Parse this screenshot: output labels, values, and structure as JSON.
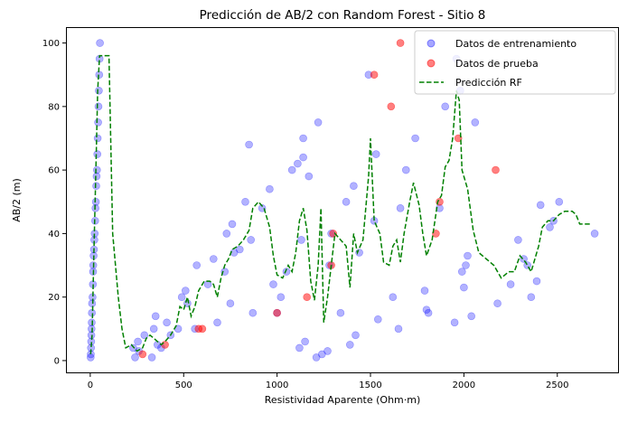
{
  "chart_data": {
    "type": "scatter",
    "title": "Predicción de AB/2 con Random Forest - Sitio 8",
    "xlabel": "Resistividad Aparente (Ohm·m)",
    "ylabel": "AB/2 (m)",
    "xlim": [
      -130,
      2830
    ],
    "ylim": [
      -4,
      105
    ],
    "xticks": [
      0,
      500,
      1000,
      1500,
      2000,
      2500
    ],
    "yticks": [
      0,
      20,
      40,
      60,
      80,
      100
    ],
    "grid": false,
    "legend_position": "top-right",
    "series": [
      {
        "name": "Datos de entrenamiento",
        "kind": "scatter",
        "color": "#0000ff",
        "points": [
          [
            2,
            1
          ],
          [
            3,
            2
          ],
          [
            4,
            4
          ],
          [
            5,
            6
          ],
          [
            6,
            8
          ],
          [
            7,
            10
          ],
          [
            8,
            12
          ],
          [
            9,
            15
          ],
          [
            10,
            18
          ],
          [
            12,
            20
          ],
          [
            14,
            24
          ],
          [
            15,
            28
          ],
          [
            16,
            30
          ],
          [
            18,
            33
          ],
          [
            20,
            35
          ],
          [
            22,
            38
          ],
          [
            24,
            40
          ],
          [
            26,
            44
          ],
          [
            28,
            48
          ],
          [
            30,
            50
          ],
          [
            32,
            55
          ],
          [
            34,
            58
          ],
          [
            36,
            60
          ],
          [
            38,
            65
          ],
          [
            40,
            70
          ],
          [
            42,
            75
          ],
          [
            44,
            80
          ],
          [
            46,
            85
          ],
          [
            48,
            90
          ],
          [
            50,
            95
          ],
          [
            52,
            100
          ],
          [
            230,
            4
          ],
          [
            240,
            1
          ],
          [
            255,
            6
          ],
          [
            260,
            3
          ],
          [
            290,
            8
          ],
          [
            330,
            1
          ],
          [
            340,
            10
          ],
          [
            350,
            14
          ],
          [
            360,
            5
          ],
          [
            380,
            4
          ],
          [
            410,
            12
          ],
          [
            430,
            8
          ],
          [
            470,
            10
          ],
          [
            490,
            20
          ],
          [
            510,
            22
          ],
          [
            520,
            18
          ],
          [
            570,
            30
          ],
          [
            560,
            10
          ],
          [
            630,
            24
          ],
          [
            660,
            32
          ],
          [
            680,
            12
          ],
          [
            720,
            28
          ],
          [
            730,
            40
          ],
          [
            750,
            18
          ],
          [
            760,
            43
          ],
          [
            770,
            34
          ],
          [
            800,
            35
          ],
          [
            830,
            50
          ],
          [
            850,
            68
          ],
          [
            860,
            38
          ],
          [
            870,
            15
          ],
          [
            920,
            48
          ],
          [
            960,
            54
          ],
          [
            980,
            24
          ],
          [
            1000,
            15
          ],
          [
            1020,
            20
          ],
          [
            1050,
            28
          ],
          [
            1080,
            60
          ],
          [
            1110,
            62
          ],
          [
            1120,
            4
          ],
          [
            1130,
            38
          ],
          [
            1140,
            70
          ],
          [
            1140,
            64
          ],
          [
            1150,
            6
          ],
          [
            1170,
            58
          ],
          [
            1210,
            1
          ],
          [
            1220,
            75
          ],
          [
            1240,
            2
          ],
          [
            1270,
            3
          ],
          [
            1280,
            30
          ],
          [
            1290,
            40
          ],
          [
            1340,
            15
          ],
          [
            1370,
            50
          ],
          [
            1390,
            5
          ],
          [
            1410,
            55
          ],
          [
            1420,
            8
          ],
          [
            1440,
            34
          ],
          [
            1490,
            90
          ],
          [
            1520,
            44
          ],
          [
            1530,
            65
          ],
          [
            1540,
            13
          ],
          [
            1620,
            20
          ],
          [
            1650,
            10
          ],
          [
            1660,
            48
          ],
          [
            1690,
            60
          ],
          [
            1740,
            70
          ],
          [
            1790,
            22
          ],
          [
            1800,
            16
          ],
          [
            1810,
            15
          ],
          [
            1870,
            48
          ],
          [
            1900,
            80
          ],
          [
            1950,
            12
          ],
          [
            1960,
            95
          ],
          [
            1980,
            85
          ],
          [
            1990,
            28
          ],
          [
            2000,
            23
          ],
          [
            2010,
            30
          ],
          [
            2020,
            33
          ],
          [
            2040,
            14
          ],
          [
            2060,
            75
          ],
          [
            2180,
            18
          ],
          [
            2250,
            24
          ],
          [
            2290,
            38
          ],
          [
            2320,
            32
          ],
          [
            2340,
            30
          ],
          [
            2360,
            20
          ],
          [
            2390,
            25
          ],
          [
            2410,
            49
          ],
          [
            2460,
            42
          ],
          [
            2480,
            44
          ],
          [
            2510,
            50
          ],
          [
            2700,
            40
          ]
        ]
      },
      {
        "name": "Datos de prueba",
        "kind": "scatter",
        "color": "#ff0000",
        "points": [
          [
            280,
            2
          ],
          [
            400,
            5
          ],
          [
            580,
            10
          ],
          [
            600,
            10
          ],
          [
            1000,
            15
          ],
          [
            1160,
            20
          ],
          [
            1290,
            30
          ],
          [
            1300,
            40
          ],
          [
            1520,
            90
          ],
          [
            1610,
            80
          ],
          [
            1660,
            100
          ],
          [
            1850,
            40
          ],
          [
            1870,
            50
          ],
          [
            1970,
            70
          ],
          [
            2170,
            60
          ]
        ]
      },
      {
        "name": "Predicción RF",
        "kind": "line",
        "color": "#008000",
        "points": [
          [
            2,
            2
          ],
          [
            10,
            8
          ],
          [
            20,
            35
          ],
          [
            30,
            60
          ],
          [
            40,
            85
          ],
          [
            50,
            96
          ],
          [
            100,
            96
          ],
          [
            120,
            40
          ],
          [
            150,
            20
          ],
          [
            170,
            10
          ],
          [
            190,
            4
          ],
          [
            220,
            5
          ],
          [
            250,
            3
          ],
          [
            280,
            4
          ],
          [
            300,
            7
          ],
          [
            320,
            8
          ],
          [
            340,
            7
          ],
          [
            360,
            6
          ],
          [
            380,
            5
          ],
          [
            400,
            6
          ],
          [
            430,
            8
          ],
          [
            460,
            11
          ],
          [
            480,
            17
          ],
          [
            500,
            16
          ],
          [
            520,
            20
          ],
          [
            540,
            14
          ],
          [
            560,
            17
          ],
          [
            580,
            22
          ],
          [
            610,
            25
          ],
          [
            640,
            25
          ],
          [
            660,
            24
          ],
          [
            680,
            20
          ],
          [
            700,
            26
          ],
          [
            720,
            30
          ],
          [
            740,
            32
          ],
          [
            760,
            35
          ],
          [
            790,
            36
          ],
          [
            820,
            38
          ],
          [
            850,
            41
          ],
          [
            870,
            48
          ],
          [
            900,
            50
          ],
          [
            930,
            48
          ],
          [
            960,
            42
          ],
          [
            980,
            33
          ],
          [
            1000,
            27
          ],
          [
            1030,
            26
          ],
          [
            1060,
            30
          ],
          [
            1080,
            28
          ],
          [
            1100,
            34
          ],
          [
            1120,
            44
          ],
          [
            1140,
            48
          ],
          [
            1160,
            41
          ],
          [
            1180,
            25
          ],
          [
            1200,
            19
          ],
          [
            1220,
            30
          ],
          [
            1235,
            48
          ],
          [
            1250,
            12
          ],
          [
            1270,
            20
          ],
          [
            1290,
            30
          ],
          [
            1310,
            40
          ],
          [
            1340,
            38
          ],
          [
            1370,
            36
          ],
          [
            1390,
            23
          ],
          [
            1410,
            40
          ],
          [
            1430,
            34
          ],
          [
            1460,
            38
          ],
          [
            1490,
            58
          ],
          [
            1500,
            70
          ],
          [
            1520,
            44
          ],
          [
            1550,
            40
          ],
          [
            1570,
            31
          ],
          [
            1600,
            30
          ],
          [
            1620,
            36
          ],
          [
            1640,
            38
          ],
          [
            1660,
            31
          ],
          [
            1680,
            40
          ],
          [
            1710,
            50
          ],
          [
            1730,
            56
          ],
          [
            1760,
            49
          ],
          [
            1780,
            40
          ],
          [
            1800,
            33
          ],
          [
            1830,
            38
          ],
          [
            1860,
            50
          ],
          [
            1880,
            52
          ],
          [
            1900,
            61
          ],
          [
            1920,
            63
          ],
          [
            1940,
            70
          ],
          [
            1960,
            85
          ],
          [
            1975,
            82
          ],
          [
            1990,
            60
          ],
          [
            2020,
            54
          ],
          [
            2050,
            41
          ],
          [
            2080,
            34
          ],
          [
            2120,
            32
          ],
          [
            2160,
            30
          ],
          [
            2200,
            26
          ],
          [
            2240,
            28
          ],
          [
            2270,
            28
          ],
          [
            2300,
            33
          ],
          [
            2330,
            31
          ],
          [
            2360,
            28
          ],
          [
            2400,
            36
          ],
          [
            2420,
            42
          ],
          [
            2450,
            44
          ],
          [
            2480,
            44
          ],
          [
            2510,
            46
          ],
          [
            2540,
            47
          ],
          [
            2580,
            47
          ],
          [
            2600,
            46
          ],
          [
            2620,
            43
          ],
          [
            2680,
            43
          ]
        ]
      }
    ]
  }
}
